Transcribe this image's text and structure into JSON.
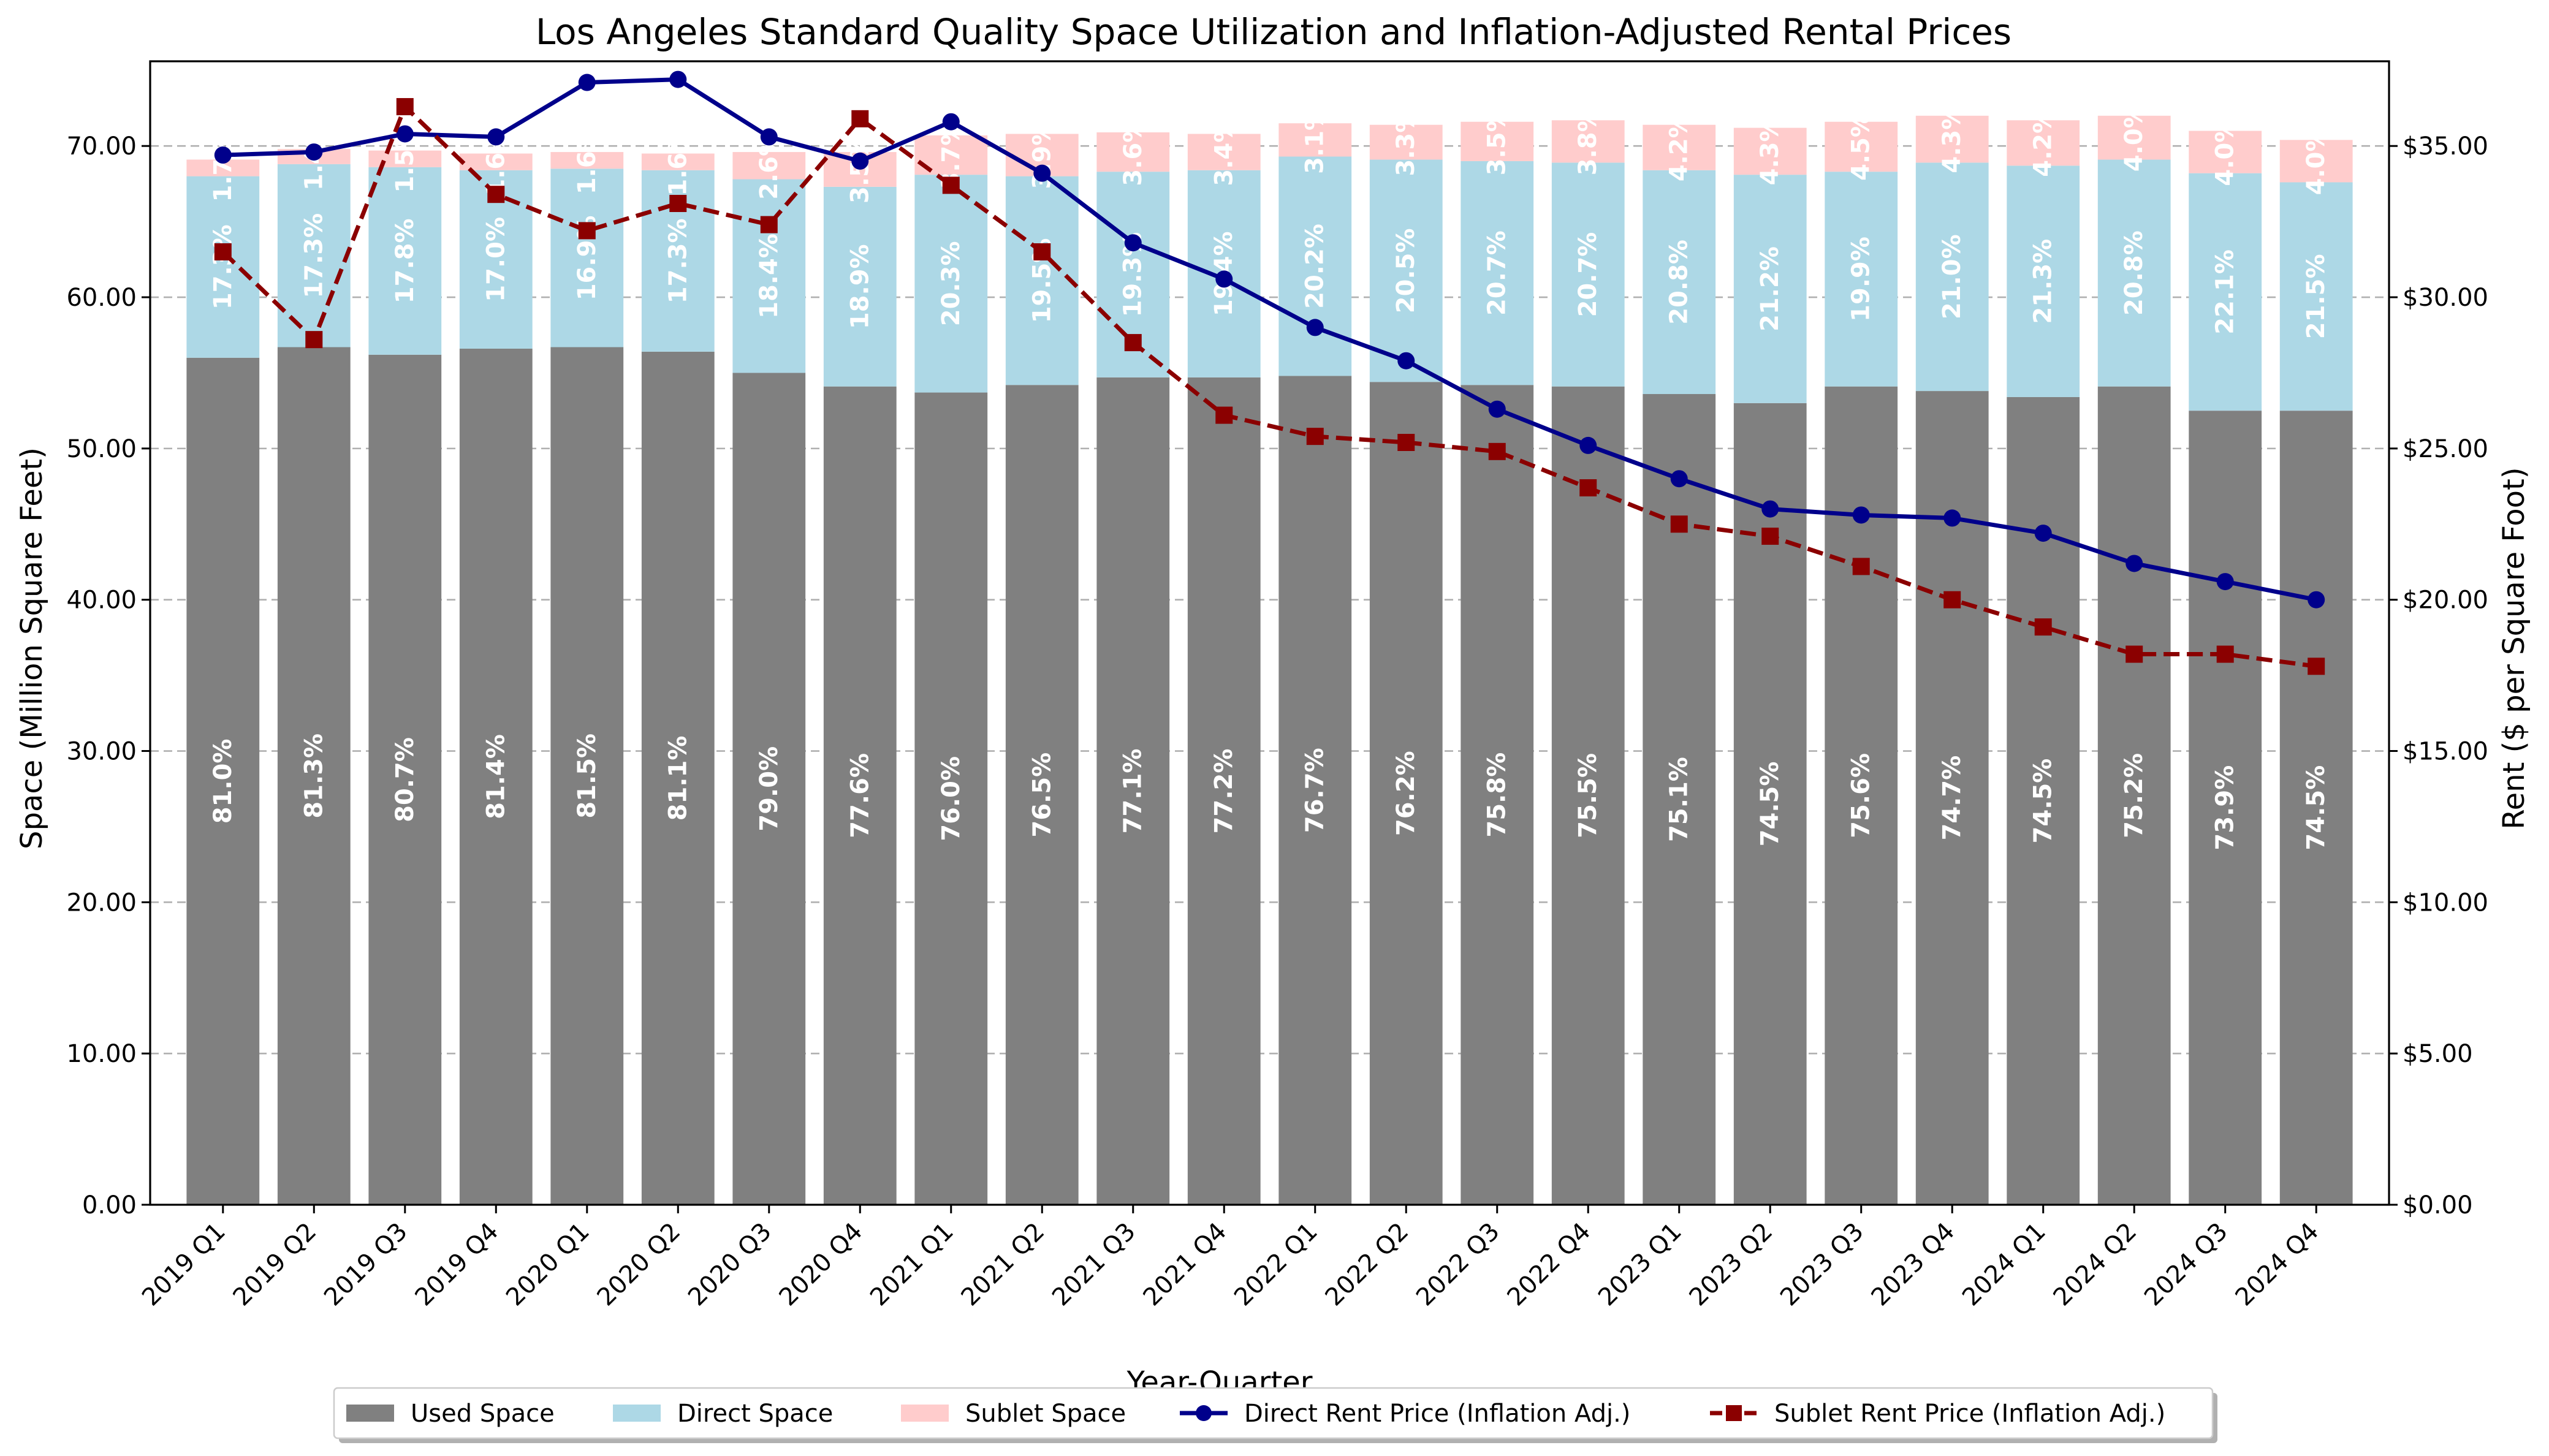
{
  "chart_data": {
    "type": "bar",
    "title": "Los Angeles Standard Quality Space Utilization and Inflation-Adjusted Rental Prices",
    "xlabel": "Year-Quarter",
    "ylabel": "Space (Million Square Feet)",
    "y2label": "Rent ($ per Square Foot)",
    "ylim": [
      0,
      75.6
    ],
    "y2lim": [
      0,
      37.8
    ],
    "yticks": [
      "0.00",
      "10.00",
      "20.00",
      "30.00",
      "40.00",
      "50.00",
      "60.00",
      "70.00"
    ],
    "y2ticks": [
      "$0.00",
      "$5.00",
      "$10.00",
      "$15.00",
      "$20.00",
      "$25.00",
      "$30.00",
      "$35.00"
    ],
    "grid": true,
    "legend_position": "bottom-center",
    "categories": [
      "2019 Q1",
      "2019 Q2",
      "2019 Q3",
      "2019 Q4",
      "2020 Q1",
      "2020 Q2",
      "2020 Q3",
      "2020 Q4",
      "2021 Q1",
      "2021 Q2",
      "2021 Q3",
      "2021 Q4",
      "2022 Q1",
      "2022 Q2",
      "2022 Q3",
      "2022 Q4",
      "2023 Q1",
      "2023 Q2",
      "2023 Q3",
      "2023 Q4",
      "2024 Q1",
      "2024 Q2",
      "2024 Q3",
      "2024 Q4"
    ],
    "series": [
      {
        "name": "Used Space",
        "kind": "stacked-bar",
        "color": "#808080",
        "values": [
          56.0,
          56.7,
          56.2,
          56.6,
          56.7,
          56.4,
          55.0,
          54.1,
          53.7,
          54.2,
          54.7,
          54.7,
          54.8,
          54.4,
          54.2,
          54.1,
          53.6,
          53.0,
          54.1,
          53.8,
          53.4,
          54.1,
          52.5,
          52.5
        ],
        "labels": [
          "81.0%",
          "81.3%",
          "80.7%",
          "81.4%",
          "81.5%",
          "81.1%",
          "79.0%",
          "77.6%",
          "76.0%",
          "76.5%",
          "77.1%",
          "77.2%",
          "76.7%",
          "76.2%",
          "75.8%",
          "75.5%",
          "75.1%",
          "74.5%",
          "75.6%",
          "74.7%",
          "74.5%",
          "75.2%",
          "73.9%",
          "74.5%"
        ]
      },
      {
        "name": "Direct Space",
        "kind": "stacked-bar",
        "color": "#add8e6",
        "values": [
          12.0,
          12.1,
          12.4,
          11.8,
          11.8,
          12.0,
          12.8,
          13.2,
          14.4,
          13.8,
          13.6,
          13.7,
          14.5,
          14.7,
          14.8,
          14.8,
          14.8,
          15.1,
          14.2,
          15.1,
          15.3,
          15.0,
          15.7,
          15.1
        ],
        "labels": [
          "17.3%",
          "17.3%",
          "17.8%",
          "17.0%",
          "16.9%",
          "17.3%",
          "18.4%",
          "18.9%",
          "20.3%",
          "19.5%",
          "19.3%",
          "19.4%",
          "20.2%",
          "20.5%",
          "20.7%",
          "20.7%",
          "20.8%",
          "21.2%",
          "19.9%",
          "21.0%",
          "21.3%",
          "20.8%",
          "22.1%",
          "21.5%"
        ]
      },
      {
        "name": "Sublet Space",
        "kind": "stacked-bar",
        "color": "#ffcccc",
        "values": [
          1.1,
          1.0,
          1.1,
          1.1,
          1.1,
          1.1,
          1.8,
          2.3,
          2.6,
          2.8,
          2.6,
          2.4,
          2.2,
          2.3,
          2.6,
          2.8,
          3.0,
          3.1,
          3.3,
          3.1,
          3.0,
          2.9,
          2.8,
          2.8
        ],
        "labels": [
          "1.7%",
          "1.4%",
          "1.5%",
          "1.6%",
          "1.6%",
          "1.6%",
          "2.6%",
          "3.5%",
          "3.7%",
          "3.9%",
          "3.6%",
          "3.4%",
          "3.1%",
          "3.3%",
          "3.5%",
          "3.8%",
          "4.2%",
          "4.3%",
          "4.5%",
          "4.3%",
          "4.2%",
          "4.0%",
          "4.0%",
          "4.0%"
        ]
      },
      {
        "name": "Direct Rent Price (Inflation Adj.)",
        "kind": "line",
        "axis": "right",
        "color": "#00008b",
        "marker": "circle",
        "values": [
          34.7,
          34.8,
          35.4,
          35.3,
          37.1,
          37.2,
          35.3,
          34.5,
          35.8,
          34.1,
          31.8,
          30.6,
          29.0,
          27.9,
          26.3,
          25.1,
          24.0,
          23.0,
          22.8,
          22.7,
          22.2,
          21.2,
          20.6,
          20.0
        ]
      },
      {
        "name": "Sublet Rent Price (Inflation Adj.)",
        "kind": "line",
        "axis": "right",
        "style": "dashed",
        "color": "#8b0000",
        "marker": "square",
        "values": [
          31.5,
          28.6,
          36.3,
          33.4,
          32.2,
          33.1,
          32.4,
          35.9,
          33.7,
          31.5,
          28.5,
          26.1,
          25.4,
          25.2,
          24.9,
          23.7,
          22.5,
          22.1,
          21.1,
          20.0,
          19.1,
          18.2,
          18.2,
          17.8
        ]
      }
    ]
  }
}
